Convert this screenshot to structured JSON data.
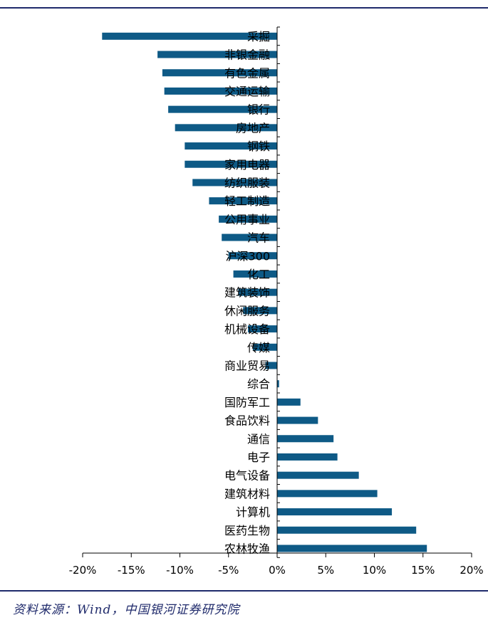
{
  "colors": {
    "bar": "#0e5a86",
    "rule": "#1f2a6b",
    "axis": "#000000"
  },
  "source_note": "资料来源：Wind，中国银河证券研究院",
  "chart_data": {
    "type": "bar",
    "orientation": "horizontal",
    "categories": [
      "采掘",
      "非银金融",
      "有色金属",
      "交通运输",
      "银行",
      "房地产",
      "钢铁",
      "家用电器",
      "纺织服装",
      "轻工制造",
      "公用事业",
      "汽车",
      "沪深300",
      "化工",
      "建筑装饰",
      "休闲服务",
      "机械设备",
      "传媒",
      "商业贸易",
      "综合",
      "国防军工",
      "食品饮料",
      "通信",
      "电子",
      "电气设备",
      "建筑材料",
      "计算机",
      "医药生物",
      "农林牧渔"
    ],
    "values": [
      -18.0,
      -12.3,
      -11.8,
      -11.6,
      -11.2,
      -10.5,
      -9.5,
      -9.5,
      -8.7,
      -7.0,
      -6.0,
      -5.7,
      -5.0,
      -4.5,
      -4.0,
      -3.5,
      -3.0,
      -2.5,
      -1.2,
      0.2,
      2.4,
      4.2,
      5.8,
      6.2,
      8.4,
      10.3,
      11.8,
      14.3,
      15.4
    ],
    "xlim": [
      -20,
      20
    ],
    "xticks": [
      -20,
      -15,
      -10,
      -5,
      0,
      5,
      10,
      15,
      20
    ],
    "tick_labels": [
      "-20%",
      "-15%",
      "-10%",
      "-5%",
      "0%",
      "5%",
      "10%",
      "15%",
      "20%"
    ],
    "grid": false,
    "legend": "none"
  }
}
